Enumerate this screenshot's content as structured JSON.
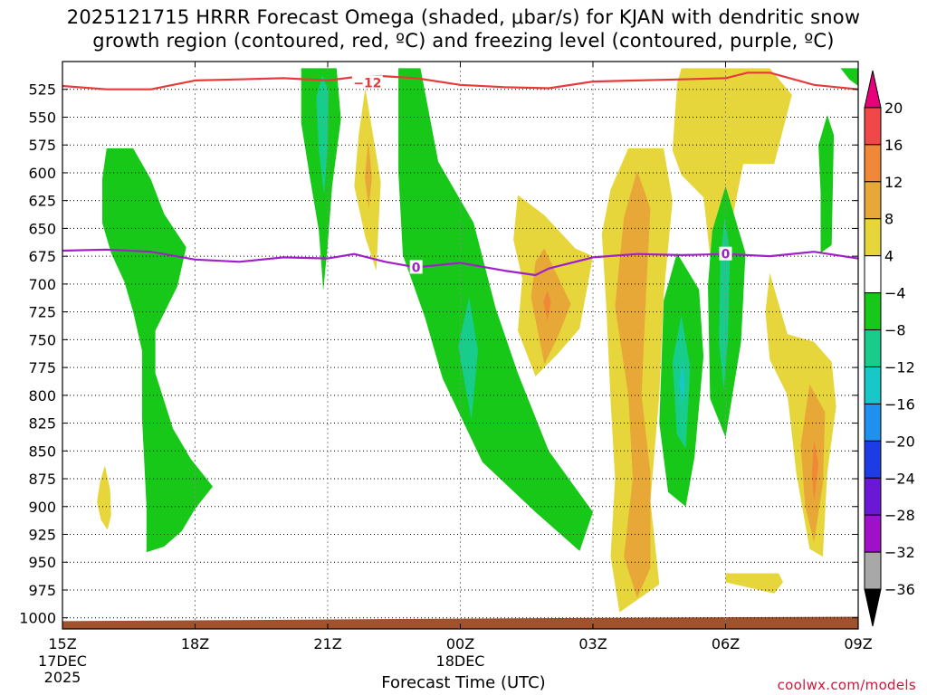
{
  "chart_data": {
    "type": "time-height contour",
    "title_line1": "2025121715 HRRR Forecast Omega (shaded, μbar/s) for KJAN with dendritic snow",
    "title_line2": "growth region (contoured, red, ºC) and freezing level (contoured, purple, ºC)",
    "xlabel": "Forecast Time (UTC)",
    "x_hours": [
      0,
      3,
      6,
      9,
      12,
      15,
      18
    ],
    "x_tick_labels": [
      "15Z",
      "18Z",
      "21Z",
      "00Z",
      "03Z",
      "06Z",
      "09Z"
    ],
    "x_date_labels": [
      {
        "hour": 0,
        "lines": [
          "17DEC",
          "2025"
        ]
      },
      {
        "hour": 9,
        "lines": [
          "18DEC"
        ]
      }
    ],
    "y_levels_mb": [
      525,
      550,
      575,
      600,
      625,
      650,
      675,
      700,
      725,
      750,
      775,
      800,
      825,
      850,
      875,
      900,
      925,
      950,
      975,
      1000
    ],
    "ylim_mb": [
      500,
      1010
    ],
    "colorbar": {
      "labels": [
        "20",
        "16",
        "12",
        "8",
        "4",
        "−4",
        "−8",
        "−12",
        "−16",
        "−20",
        "−24",
        "−28",
        "−32",
        "−36"
      ],
      "bins": [
        {
          "color": "#e8007a"
        },
        {
          "color": "#f04848"
        },
        {
          "color": "#f08838"
        },
        {
          "color": "#e8a838"
        },
        {
          "color": "#e6d63c"
        },
        {
          "color": "#ffffff"
        },
        {
          "color": "#18c818"
        },
        {
          "color": "#18cc8c"
        },
        {
          "color": "#18c8c8"
        },
        {
          "color": "#1e90f0"
        },
        {
          "color": "#1e3ce6"
        },
        {
          "color": "#6a18d6"
        },
        {
          "color": "#a010c8"
        },
        {
          "color": "#a8a8a8"
        },
        {
          "color": "#000000"
        }
      ]
    },
    "contour_labels": [
      {
        "text": "−12",
        "series": "dendritic_red",
        "hour": 6.9,
        "mb": 519
      },
      {
        "text": "0",
        "series": "freezing_purple",
        "hour": 8.0,
        "mb": 685
      },
      {
        "text": "0",
        "series": "freezing_purple",
        "hour": 15.0,
        "mb": 673
      }
    ],
    "series": [
      {
        "name": "dendritic_red",
        "color": "#e83a3a",
        "points": [
          [
            0,
            522
          ],
          [
            1,
            525
          ],
          [
            2,
            525
          ],
          [
            3,
            517
          ],
          [
            4,
            516
          ],
          [
            5,
            515
          ],
          [
            6,
            517
          ],
          [
            6.6,
            514
          ],
          [
            7.2,
            513
          ],
          [
            8,
            515
          ],
          [
            9,
            521
          ],
          [
            10,
            523
          ],
          [
            11,
            524
          ],
          [
            12,
            518
          ],
          [
            13,
            517
          ],
          [
            14,
            516
          ],
          [
            15,
            515
          ],
          [
            15.5,
            510
          ],
          [
            16,
            510
          ],
          [
            17,
            521
          ],
          [
            18,
            525
          ]
        ]
      },
      {
        "name": "freezing_purple",
        "color": "#a020c8",
        "points": [
          [
            0,
            670
          ],
          [
            1,
            669
          ],
          [
            2,
            671
          ],
          [
            3,
            678
          ],
          [
            4,
            680
          ],
          [
            5,
            676
          ],
          [
            6,
            677
          ],
          [
            6.6,
            673
          ],
          [
            7.3,
            680
          ],
          [
            8,
            685
          ],
          [
            9,
            681
          ],
          [
            10,
            688
          ],
          [
            10.7,
            692
          ],
          [
            11,
            686
          ],
          [
            12,
            676
          ],
          [
            13,
            673
          ],
          [
            14,
            674
          ],
          [
            15,
            673
          ],
          [
            16,
            675
          ],
          [
            17,
            671
          ],
          [
            18,
            677
          ]
        ]
      }
    ],
    "terrain": {
      "color": "#a0522d",
      "base_mb": 1010,
      "top_mb": [
        [
          0,
          1003
        ],
        [
          4,
          1002
        ],
        [
          8,
          1001
        ],
        [
          12,
          1000
        ],
        [
          18,
          999
        ]
      ]
    },
    "shaded_regions": [
      {
        "color": "#18c818",
        "points": [
          [
            1,
            578
          ],
          [
            1.6,
            578
          ],
          [
            2,
            606
          ],
          [
            2.3,
            637
          ],
          [
            2.8,
            667
          ],
          [
            2.6,
            702
          ],
          [
            2.1,
            742
          ],
          [
            2.1,
            780
          ],
          [
            2.5,
            830
          ],
          [
            2.9,
            857
          ],
          [
            3.4,
            882
          ],
          [
            3.0,
            902
          ],
          [
            2.7,
            922
          ],
          [
            2.3,
            936
          ],
          [
            1.9,
            941
          ],
          [
            1.9,
            900
          ],
          [
            1.8,
            820
          ],
          [
            1.8,
            760
          ],
          [
            1.6,
            725
          ],
          [
            1.4,
            698
          ],
          [
            1.1,
            672
          ],
          [
            0.9,
            645
          ],
          [
            0.9,
            605
          ]
        ]
      },
      {
        "color": "#e6d63c",
        "points": [
          [
            0.96,
            863
          ],
          [
            1.08,
            885
          ],
          [
            1.1,
            908
          ],
          [
            1.02,
            921
          ],
          [
            0.87,
            912
          ],
          [
            0.78,
            896
          ],
          [
            0.85,
            878
          ]
        ]
      },
      {
        "color": "#18c818",
        "points": [
          [
            5.4,
            506
          ],
          [
            6.2,
            506
          ],
          [
            6.3,
            552
          ],
          [
            6.1,
            612
          ],
          [
            6.0,
            665
          ],
          [
            5.9,
            706
          ],
          [
            5.8,
            652
          ],
          [
            5.6,
            605
          ],
          [
            5.4,
            555
          ]
        ]
      },
      {
        "color": "#18cc8c",
        "points": [
          [
            5.88,
            512
          ],
          [
            6.02,
            527
          ],
          [
            6.0,
            575
          ],
          [
            5.92,
            620
          ],
          [
            5.8,
            580
          ],
          [
            5.74,
            532
          ]
        ]
      },
      {
        "color": "#e6d63c",
        "points": [
          [
            6.85,
            524
          ],
          [
            7.2,
            608
          ],
          [
            7.1,
            688
          ],
          [
            6.85,
            658
          ],
          [
            6.6,
            612
          ],
          [
            6.7,
            566
          ]
        ]
      },
      {
        "color": "#e8a838",
        "points": [
          [
            6.92,
            570
          ],
          [
            7.0,
            604
          ],
          [
            6.93,
            632
          ],
          [
            6.84,
            604
          ]
        ]
      },
      {
        "color": "#18c818",
        "points": [
          [
            7.6,
            506
          ],
          [
            8.1,
            506
          ],
          [
            8.5,
            590
          ],
          [
            9.3,
            645
          ],
          [
            9.8,
            722
          ],
          [
            10.3,
            780
          ],
          [
            11.0,
            850
          ],
          [
            12.0,
            905
          ],
          [
            11.7,
            940
          ],
          [
            10.7,
            905
          ],
          [
            9.5,
            860
          ],
          [
            8.6,
            785
          ],
          [
            8.2,
            730
          ],
          [
            7.7,
            674
          ],
          [
            7.6,
            600
          ]
        ]
      },
      {
        "color": "#18cc8c",
        "points": [
          [
            9.2,
            712
          ],
          [
            9.4,
            760
          ],
          [
            9.25,
            822
          ],
          [
            8.95,
            756
          ]
        ]
      },
      {
        "color": "#e6d63c",
        "points": [
          [
            10.3,
            620
          ],
          [
            10.9,
            638
          ],
          [
            11.6,
            668
          ],
          [
            12.0,
            675
          ],
          [
            11.7,
            740
          ],
          [
            11.2,
            763
          ],
          [
            10.7,
            783
          ],
          [
            10.3,
            742
          ],
          [
            10.4,
            695
          ],
          [
            10.2,
            660
          ]
        ]
      },
      {
        "color": "#e8a838",
        "points": [
          [
            10.9,
            668
          ],
          [
            11.5,
            718
          ],
          [
            11.2,
            748
          ],
          [
            10.9,
            772
          ],
          [
            10.6,
            712
          ],
          [
            10.7,
            680
          ]
        ]
      },
      {
        "color": "#f08838",
        "points": [
          [
            10.97,
            706
          ],
          [
            11.05,
            716
          ],
          [
            10.97,
            733
          ],
          [
            10.88,
            716
          ]
        ]
      },
      {
        "color": "#e6d63c",
        "points": [
          [
            12.8,
            578
          ],
          [
            13.6,
            578
          ],
          [
            13.8,
            625
          ],
          [
            13.6,
            710
          ],
          [
            13.5,
            800
          ],
          [
            13.3,
            895
          ],
          [
            13.5,
            970
          ],
          [
            12.6,
            995
          ],
          [
            12.4,
            945
          ],
          [
            12.5,
            875
          ],
          [
            12.4,
            805
          ],
          [
            12.3,
            720
          ],
          [
            12.2,
            655
          ],
          [
            12.4,
            615
          ]
        ]
      },
      {
        "color": "#e8a838",
        "points": [
          [
            13.0,
            598
          ],
          [
            13.3,
            632
          ],
          [
            13.2,
            710
          ],
          [
            13.1,
            800
          ],
          [
            13.3,
            870
          ],
          [
            13.3,
            955
          ],
          [
            13.0,
            982
          ],
          [
            12.7,
            945
          ],
          [
            12.9,
            875
          ],
          [
            12.8,
            800
          ],
          [
            12.5,
            720
          ],
          [
            12.7,
            640
          ]
        ]
      },
      {
        "color": "#18c818",
        "points": [
          [
            13.9,
            672
          ],
          [
            14.4,
            705
          ],
          [
            14.5,
            765
          ],
          [
            14.3,
            855
          ],
          [
            14.1,
            900
          ],
          [
            13.7,
            887
          ],
          [
            13.5,
            825
          ],
          [
            13.6,
            715
          ]
        ]
      },
      {
        "color": "#18cc8c",
        "points": [
          [
            14.0,
            728
          ],
          [
            14.2,
            775
          ],
          [
            14.1,
            848
          ],
          [
            13.9,
            835
          ],
          [
            13.8,
            770
          ]
        ]
      },
      {
        "color": "#18c8c8",
        "points": [
          [
            14.02,
            768
          ],
          [
            14.08,
            790
          ],
          [
            14.02,
            808
          ],
          [
            13.96,
            790
          ]
        ]
      },
      {
        "color": "#e6d63c",
        "points": [
          [
            14.0,
            506
          ],
          [
            16.0,
            506
          ],
          [
            16.5,
            530
          ],
          [
            16.1,
            592
          ],
          [
            15.4,
            592
          ],
          [
            15.0,
            672
          ],
          [
            14.9,
            702
          ],
          [
            14.7,
            692
          ],
          [
            14.5,
            622
          ],
          [
            14.0,
            602
          ],
          [
            13.8,
            580
          ],
          [
            13.9,
            520
          ]
        ]
      },
      {
        "color": "#18c818",
        "points": [
          [
            15.0,
            612
          ],
          [
            15.45,
            672
          ],
          [
            15.35,
            752
          ],
          [
            15.0,
            838
          ],
          [
            14.65,
            803
          ],
          [
            14.6,
            702
          ],
          [
            14.7,
            652
          ]
        ]
      },
      {
        "color": "#18cc8c",
        "points": [
          [
            14.98,
            640
          ],
          [
            15.1,
            672
          ],
          [
            15.05,
            752
          ],
          [
            14.96,
            795
          ],
          [
            14.85,
            752
          ],
          [
            14.88,
            682
          ]
        ]
      },
      {
        "color": "#e6d63c",
        "points": [
          [
            15.0,
            960
          ],
          [
            16.2,
            960
          ],
          [
            16.3,
            968
          ],
          [
            16.1,
            978
          ],
          [
            15.0,
            968
          ]
        ]
      },
      {
        "color": "#e6d63c",
        "points": [
          [
            16.0,
            690
          ],
          [
            16.4,
            745
          ],
          [
            17.0,
            752
          ],
          [
            17.4,
            770
          ],
          [
            17.5,
            810
          ],
          [
            17.3,
            870
          ],
          [
            17.2,
            945
          ],
          [
            16.9,
            938
          ],
          [
            16.6,
            870
          ],
          [
            16.4,
            800
          ],
          [
            16.0,
            768
          ],
          [
            15.9,
            725
          ]
        ]
      },
      {
        "color": "#e8a838",
        "points": [
          [
            16.9,
            790
          ],
          [
            17.25,
            815
          ],
          [
            17.2,
            880
          ],
          [
            17.0,
            932
          ],
          [
            16.8,
            900
          ],
          [
            16.7,
            845
          ]
        ]
      },
      {
        "color": "#f08838",
        "points": [
          [
            17.0,
            840
          ],
          [
            17.1,
            862
          ],
          [
            17.0,
            895
          ],
          [
            16.95,
            870
          ]
        ]
      },
      {
        "color": "#18c818",
        "points": [
          [
            17.3,
            548
          ],
          [
            17.45,
            566
          ],
          [
            17.4,
            665
          ],
          [
            17.15,
            672
          ],
          [
            17.15,
            618
          ],
          [
            17.1,
            575
          ]
        ]
      },
      {
        "color": "#18c818",
        "points": [
          [
            17.6,
            506
          ],
          [
            18.0,
            506
          ],
          [
            18.0,
            522
          ],
          [
            17.8,
            516
          ]
        ]
      }
    ]
  },
  "footer": {
    "watermark": "coolwx.com/models"
  }
}
